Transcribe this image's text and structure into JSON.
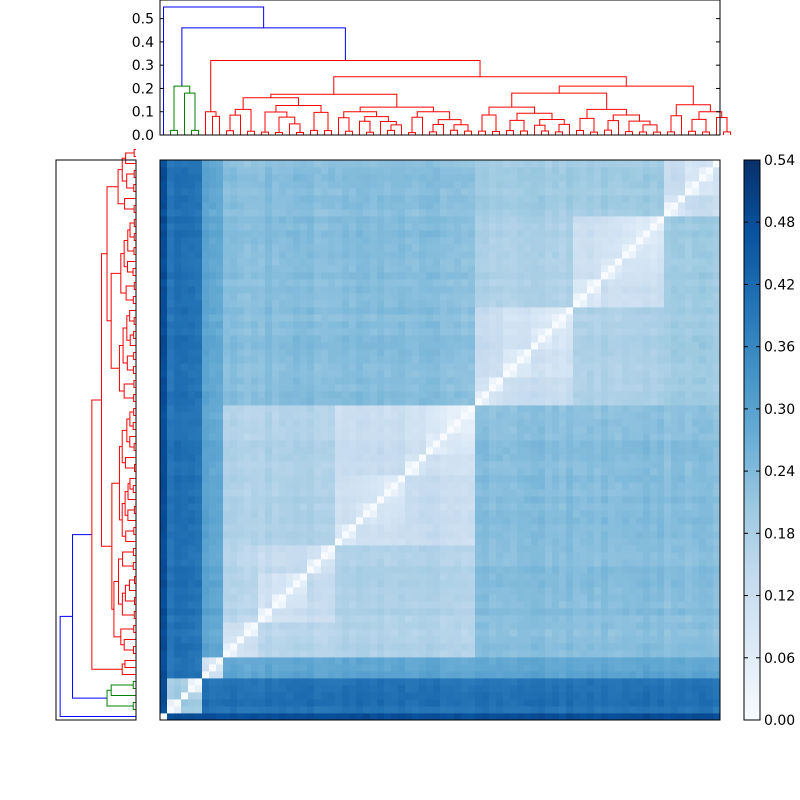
{
  "chart_data": {
    "type": "heatmap",
    "title": "",
    "n_leaves": 80,
    "top_dendrogram": {
      "yticks": [
        "0.0",
        "0.1",
        "0.2",
        "0.3",
        "0.4",
        "0.5"
      ],
      "ylim": [
        0,
        0.58
      ],
      "link_colors": {
        "root": "#0000ff",
        "green_cluster": "#008000",
        "red_cluster": "#ff0000"
      }
    },
    "colorbar": {
      "ticks": [
        "0.00",
        "0.06",
        "0.12",
        "0.18",
        "0.24",
        "0.30",
        "0.36",
        "0.42",
        "0.48",
        "0.54"
      ],
      "vmin": 0,
      "vmax": 0.54,
      "colormap": "Blues"
    },
    "merge_heights": {
      "root": 0.55,
      "outlier_vs_rest": 0.46,
      "red_vs_green": 0.32,
      "red_top": 0.25,
      "green_top": 0.21
    },
    "colors": {
      "axis": "#000000",
      "background": "#ffffff"
    }
  }
}
